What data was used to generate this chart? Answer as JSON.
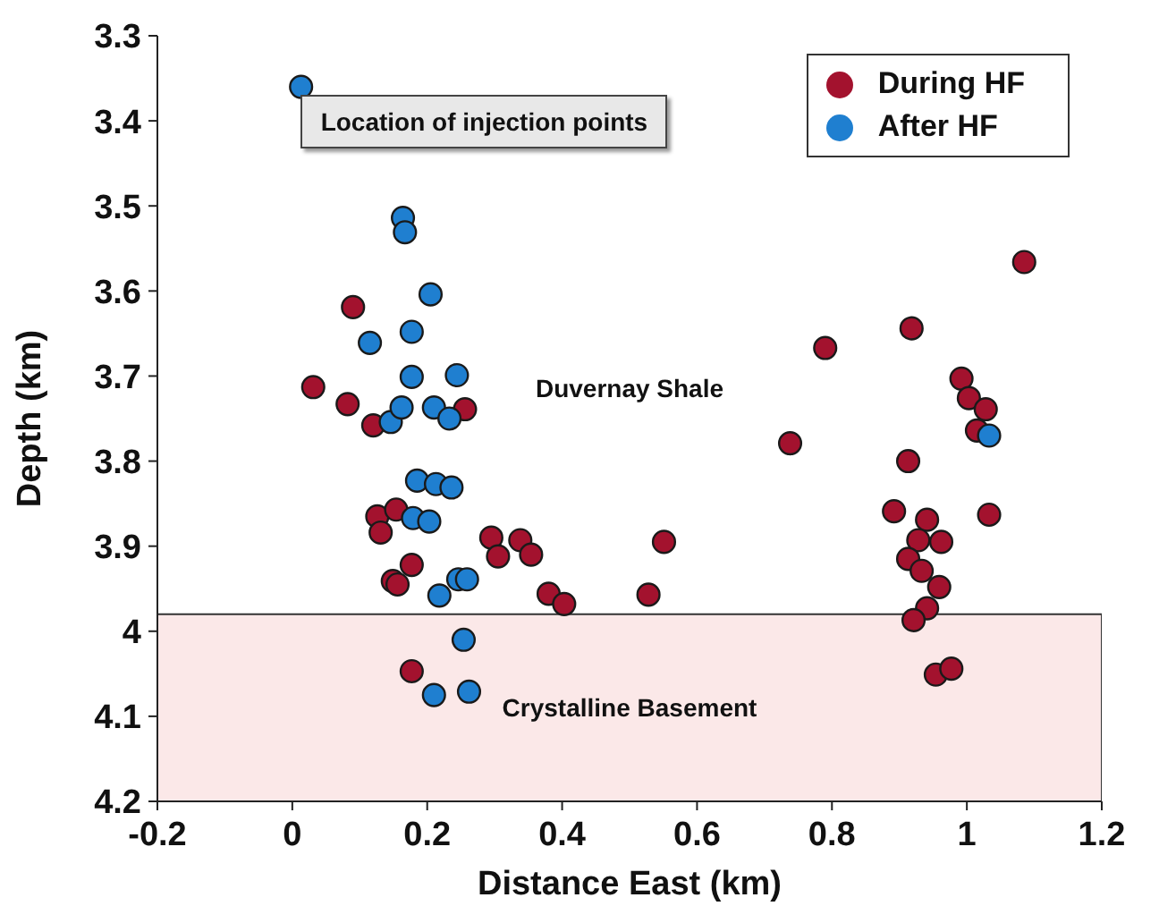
{
  "chart_data": {
    "type": "scatter",
    "xlabel": "Distance East (km)",
    "ylabel": "Depth (km)",
    "xlim": [
      -0.2,
      1.2
    ],
    "xticks": [
      -0.2,
      0,
      0.2,
      0.4,
      0.6,
      0.8,
      1,
      1.2
    ],
    "ylim": [
      4.2,
      3.3
    ],
    "yticks": [
      3.3,
      3.4,
      3.5,
      3.6,
      3.7,
      3.8,
      3.9,
      4,
      4.1,
      4.2
    ],
    "grid": false,
    "legend": "top right",
    "marker": "circle",
    "series": [
      {
        "name": "During HF",
        "color": "#a3122e",
        "x": [
          0.09,
          0.031,
          0.082,
          0.12,
          0.256,
          0.126,
          0.154,
          0.131,
          0.177,
          0.149,
          0.156,
          0.295,
          0.305,
          0.338,
          0.354,
          0.38,
          0.403,
          0.551,
          0.528,
          0.177,
          1.085,
          0.918,
          0.79,
          0.992,
          1.003,
          1.028,
          1.015,
          0.738,
          0.913,
          0.892,
          0.941,
          1.033,
          0.928,
          0.962,
          0.913,
          0.933,
          0.959,
          0.941,
          0.921,
          0.954,
          0.977
        ],
        "values": [
          3.619,
          3.713,
          3.733,
          3.758,
          3.739,
          3.865,
          3.857,
          3.884,
          3.922,
          3.941,
          3.945,
          3.89,
          3.912,
          3.893,
          3.91,
          3.956,
          3.968,
          3.895,
          3.957,
          4.047,
          3.566,
          3.644,
          3.667,
          3.703,
          3.726,
          3.739,
          3.764,
          3.779,
          3.8,
          3.859,
          3.869,
          3.863,
          3.893,
          3.895,
          3.915,
          3.929,
          3.948,
          3.973,
          3.987,
          4.051,
          4.044
        ]
      },
      {
        "name": "After HF",
        "color": "#1f7fd0",
        "x": [
          0.013,
          0.164,
          0.167,
          0.205,
          0.115,
          0.177,
          0.177,
          0.244,
          0.146,
          0.162,
          0.21,
          0.233,
          0.185,
          0.213,
          0.236,
          0.179,
          0.203,
          0.246,
          0.259,
          0.218,
          1.033,
          0.254,
          0.21,
          0.262
        ],
        "values": [
          3.36,
          3.514,
          3.531,
          3.604,
          3.661,
          3.648,
          3.701,
          3.699,
          3.754,
          3.737,
          3.737,
          3.75,
          3.823,
          3.827,
          3.831,
          3.867,
          3.871,
          3.939,
          3.939,
          3.958,
          3.77,
          4.01,
          4.075,
          4.071
        ]
      }
    ],
    "bands": [
      {
        "axis": "y",
        "from": 3.98,
        "to": 4.2,
        "label": "Crystalline Basement",
        "color": "#fbe8e8"
      }
    ],
    "annotations": [
      {
        "text": "Location of injection points",
        "x": 0.013,
        "y": 3.36
      },
      "Duvernay Shale"
    ]
  }
}
